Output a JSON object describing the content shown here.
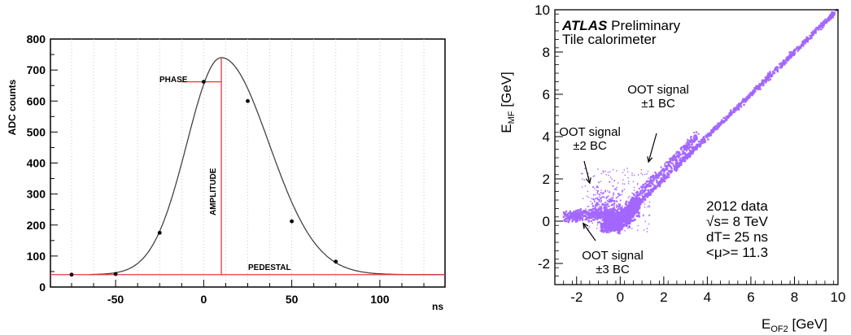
{
  "chart_data": [
    {
      "type": "line",
      "title": "",
      "xlabel": "ns",
      "ylabel": "ADC counts",
      "xlim": [
        -87,
        137
      ],
      "ylim": [
        0,
        800
      ],
      "x_ticks": [
        -50,
        0,
        50,
        100
      ],
      "y_ticks": [
        0,
        100,
        200,
        300,
        400,
        500,
        600,
        700,
        800
      ],
      "grid": "vertical dotted",
      "pedestal": 40,
      "peak": {
        "x": 10,
        "y": 740
      },
      "phase_level": 662,
      "curve_params": {
        "t0": 10,
        "pedestal": 40,
        "amplitude": 700,
        "sigma_left": 19.5,
        "sigma_right": 27
      },
      "samples": {
        "x": [
          -75,
          -50,
          -25,
          0,
          25,
          50,
          75
        ],
        "y": [
          40,
          42,
          175,
          662,
          600,
          212,
          82
        ]
      },
      "annotations": {
        "phase": "PHASE",
        "amplitude": "AMPLITUDE",
        "pedestal": "PEDESTAL"
      }
    },
    {
      "type": "scatter",
      "title": "",
      "xlabel_main": "E",
      "xlabel_sub": "OF2",
      "xlabel_unit": " [GeV]",
      "ylabel_main": "E",
      "ylabel_sub": "MF",
      "ylabel_unit": " [GeV]",
      "xlim": [
        -3,
        10
      ],
      "ylim": [
        -3,
        10
      ],
      "x_ticks": [
        -2,
        0,
        2,
        4,
        6,
        8,
        10
      ],
      "y_ticks": [
        -2,
        0,
        2,
        4,
        6,
        8,
        10
      ],
      "marker_color": "#a366ff",
      "header": {
        "atlas": "ATLAS",
        "preliminary": " Preliminary",
        "subtitle": "Tile calorimeter"
      },
      "info": [
        "2012 data",
        "√s= 8 TeV",
        "dT= 25 ns",
        "<μ>= 11.3"
      ],
      "annotations": [
        {
          "lines": [
            "OOT signal",
            "±1 BC"
          ],
          "arrow_to": [
            1.3,
            2.8
          ]
        },
        {
          "lines": [
            "OOT signal",
            "±2 BC"
          ],
          "arrow_to": [
            -1.4,
            1.8
          ]
        },
        {
          "lines": [
            "OOT signal",
            "±3 BC"
          ],
          "arrow_to": [
            -1.7,
            -0.1
          ]
        }
      ]
    }
  ]
}
